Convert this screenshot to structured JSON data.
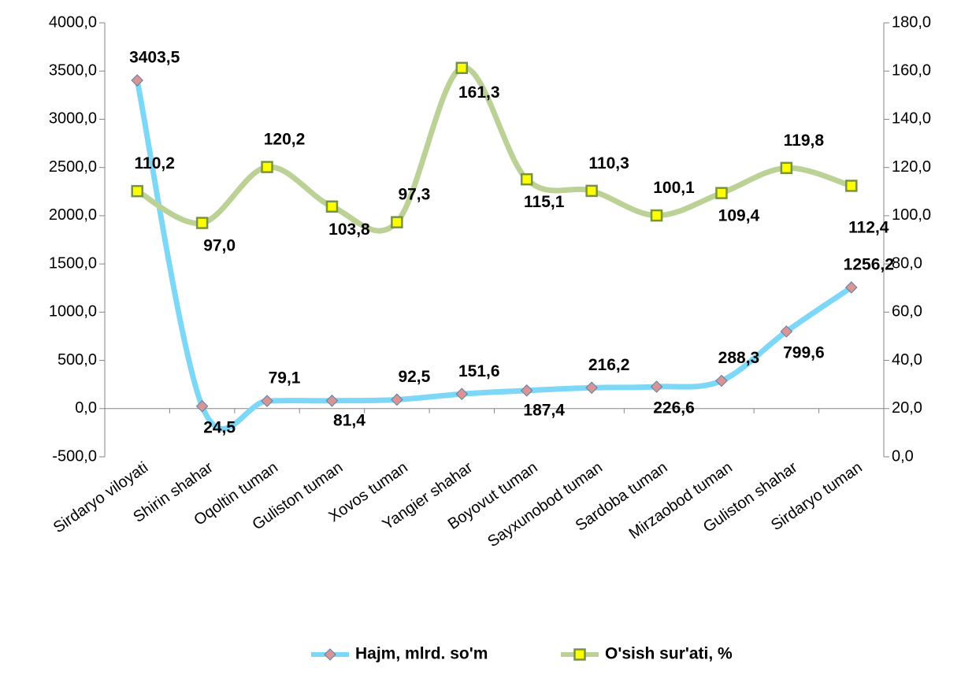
{
  "chart_data": {
    "type": "line",
    "categories": [
      "Sirdaryo viloyati",
      "Shirin shahar",
      "Oqoltin tuman",
      "Guliston tuman",
      "Xovos tuman",
      "Yangier shahar",
      "Boyovut tuman",
      "Sayxunobod tuman",
      "Sardoba tuman",
      "Mirzaobod tuman",
      "Guliston shahar",
      "Sirdaryo tuman"
    ],
    "series": [
      {
        "name": "Hajm, mlrd. so'm",
        "color": "#7dd8f7",
        "marker_color": "#d99594",
        "axis": "y",
        "values": [
          3403.5,
          24.5,
          79.1,
          81.4,
          92.5,
          151.6,
          187.4,
          216.2,
          226.6,
          288.3,
          799.6,
          1256.2
        ],
        "value_labels": [
          "3403,5",
          "24,5",
          "79,1",
          "81,4",
          "92,5",
          "151,6",
          "187,4",
          "216,2",
          "226,6",
          "288,3",
          "799,6",
          "1256,2"
        ]
      },
      {
        "name": "O'sish sur'ati, %",
        "color": "#bcd195",
        "marker_color": "#ffff00",
        "axis": "y2",
        "values": [
          110.2,
          97.0,
          120.2,
          103.8,
          97.3,
          161.3,
          115.1,
          110.3,
          100.1,
          109.4,
          119.8,
          112.4
        ],
        "value_labels": [
          "110,2",
          "97,0",
          "120,2",
          "103,8",
          "97,3",
          "161,3",
          "115,1",
          "110,3",
          "100,1",
          "109,4",
          "119,8",
          "112,4"
        ]
      }
    ],
    "ylim": [
      -500,
      4000
    ],
    "yticks": [
      {
        "value": -500,
        "label": "-500,0"
      },
      {
        "value": 0,
        "label": "0,0"
      },
      {
        "value": 500,
        "label": "500,0"
      },
      {
        "value": 1000,
        "label": "1000,0"
      },
      {
        "value": 1500,
        "label": "1500,0"
      },
      {
        "value": 2000,
        "label": "2000,0"
      },
      {
        "value": 2500,
        "label": "2500,0"
      },
      {
        "value": 3000,
        "label": "3000,0"
      },
      {
        "value": 3500,
        "label": "3500,0"
      },
      {
        "value": 4000,
        "label": "4000,0"
      }
    ],
    "y2lim": [
      0,
      180
    ],
    "y2ticks": [
      {
        "value": 0,
        "label": "0,0"
      },
      {
        "value": 20,
        "label": "20,0"
      },
      {
        "value": 40,
        "label": "40,0"
      },
      {
        "value": 60,
        "label": "60,0"
      },
      {
        "value": 80,
        "label": "80,0"
      },
      {
        "value": 100,
        "label": "100,0"
      },
      {
        "value": 120,
        "label": "120,0"
      },
      {
        "value": 140,
        "label": "140,0"
      },
      {
        "value": 160,
        "label": "160,0"
      },
      {
        "value": 180,
        "label": "180,0"
      }
    ],
    "grid": false,
    "legend": "bottom"
  }
}
